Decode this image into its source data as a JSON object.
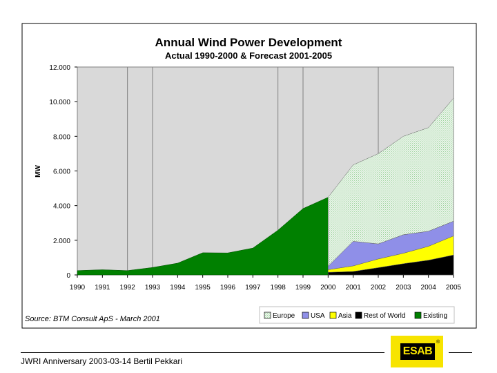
{
  "chart_data": {
    "type": "area",
    "title": "Annual Wind Power Development",
    "subtitle": "Actual 1990-2000 & Forecast 2001-2005",
    "ylabel": "MW",
    "xlabel": "",
    "ylim": [
      0,
      12000
    ],
    "y_ticks": [
      {
        "value": 0,
        "label": "0"
      },
      {
        "value": 2000,
        "label": "2.000"
      },
      {
        "value": 4000,
        "label": "4.000"
      },
      {
        "value": 6000,
        "label": "6.000"
      },
      {
        "value": 8000,
        "label": "8.000"
      },
      {
        "value": 10000,
        "label": "10.000"
      },
      {
        "value": 12000,
        "label": "12.000"
      }
    ],
    "categories": [
      "1990",
      "1991",
      "1992",
      "1993",
      "1994",
      "1995",
      "1996",
      "1997",
      "1998",
      "1999",
      "2000",
      "2001",
      "2002",
      "2003",
      "2004",
      "2005"
    ],
    "existing": {
      "name": "Existing",
      "x": [
        "1990",
        "1991",
        "1992",
        "1993",
        "1994",
        "1995",
        "1996",
        "1997",
        "1998",
        "1999",
        "2000"
      ],
      "values": [
        250,
        300,
        250,
        430,
        680,
        1280,
        1270,
        1550,
        2580,
        3830,
        4480
      ]
    },
    "forecast_stacked": {
      "x": [
        "2000",
        "2001",
        "2002",
        "2003",
        "2004",
        "2005"
      ],
      "series": [
        {
          "name": "Rest of World",
          "values": [
            150,
            200,
            420,
            650,
            850,
            1150
          ]
        },
        {
          "name": "Asia",
          "values": [
            150,
            320,
            500,
            600,
            800,
            1100
          ]
        },
        {
          "name": "USA",
          "values": [
            200,
            1420,
            870,
            1070,
            870,
            850
          ]
        },
        {
          "name": "Europe",
          "values": [
            3980,
            4410,
            5210,
            5680,
            5980,
            7100
          ]
        }
      ]
    },
    "legend_order": [
      "Europe",
      "USA",
      "Asia",
      "Rest of World",
      "Existing"
    ],
    "legend_position": "bottom-right",
    "grid": "vertical",
    "colors": {
      "Europe": "#e8f4e8",
      "Europe_dots": "#9fd49f",
      "USA": "#8f8fe8",
      "Asia": "#ffff00",
      "Rest of World": "#000000",
      "Existing": "#008000",
      "plot_background": "#d9d9d9"
    },
    "source": "Source: BTM Consult ApS - March 2001"
  },
  "footer": {
    "text": "JWRI Anniversary 2003-03-14 Bertil Pekkari",
    "logo_text": "ESAB",
    "logo_mark": "®"
  }
}
